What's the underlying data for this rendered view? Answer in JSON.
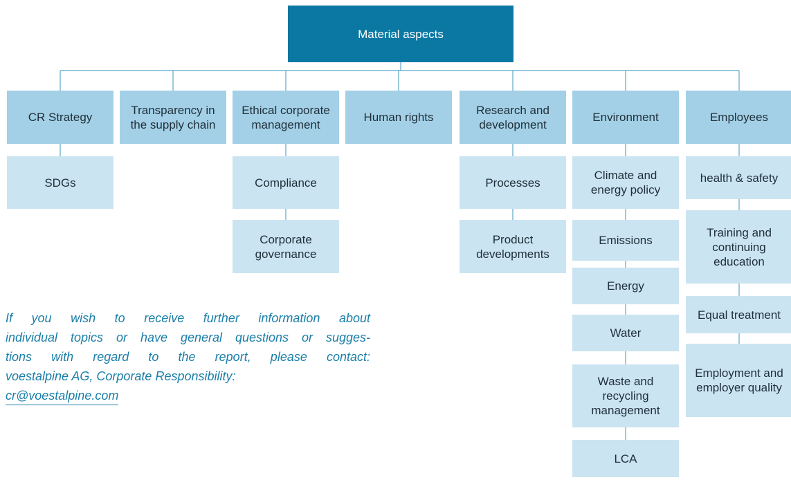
{
  "root": {
    "label": "Material aspects"
  },
  "categories": [
    {
      "label": "CR Strategy",
      "children": [
        "SDGs"
      ]
    },
    {
      "label": "Transparency in the supply chain",
      "children": []
    },
    {
      "label": "Ethical corporate management",
      "children": [
        "Compliance",
        "Corporate governance"
      ]
    },
    {
      "label": "Human rights",
      "children": []
    },
    {
      "label": "Research and development",
      "children": [
        "Processes",
        "Product developments"
      ]
    },
    {
      "label": "Environment",
      "children": [
        "Climate and energy policy",
        "Emissions",
        "Energy",
        "Water",
        "Waste and recycling management",
        "LCA"
      ]
    },
    {
      "label": "Employees",
      "children": [
        "health & safety",
        "Training and continuing education",
        "Equal treatment",
        "Employment and employer quality"
      ]
    }
  ],
  "contact": {
    "lines": [
      "If you wish to receive further information about",
      "individual topics or have general questions or sugges-",
      "tions with regard to the report, please contact:",
      "voestalpine AG, Corporate Responsibility:"
    ],
    "email": "cr@voestalpine.com"
  }
}
